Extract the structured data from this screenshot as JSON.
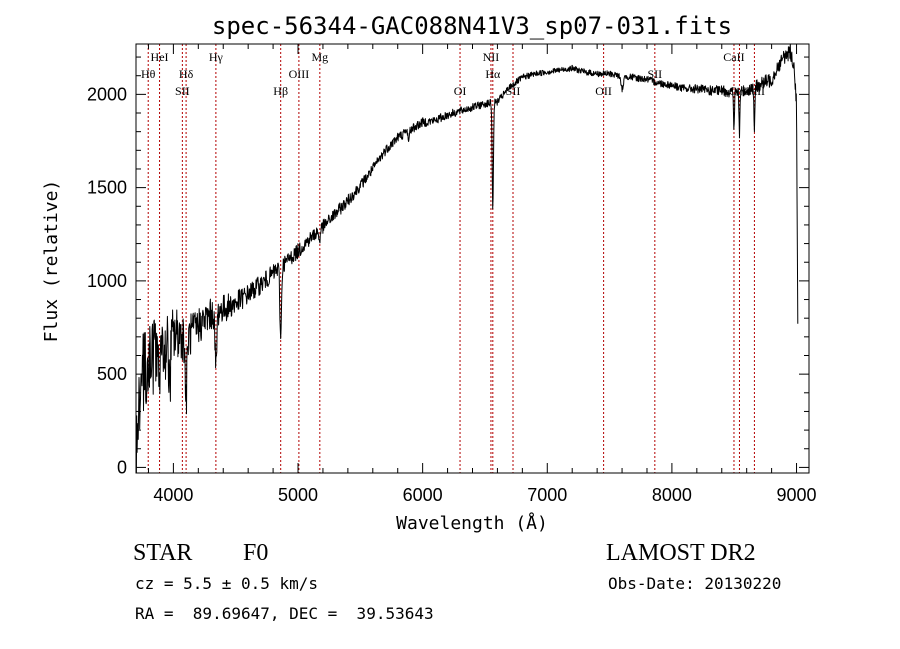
{
  "chart_data": {
    "type": "line",
    "title": "spec-56344-GAC088N41V3_sp07-031.fits",
    "xlabel": "Wavelength (Å)",
    "ylabel": "Flux (relative)",
    "xlim": [
      3700,
      9100
    ],
    "ylim": [
      -30,
      2270
    ],
    "x_ticks": [
      4000,
      5000,
      6000,
      7000,
      8000,
      9000
    ],
    "y_ticks": [
      0,
      500,
      1000,
      1500,
      2000
    ],
    "grid": false,
    "line_color": "#000000",
    "marker_color": "#b30000",
    "continuum": [
      [
        3700,
        60
      ],
      [
        3720,
        330
      ],
      [
        3740,
        450
      ],
      [
        3760,
        510
      ],
      [
        3780,
        520
      ],
      [
        3800,
        560
      ],
      [
        3820,
        590
      ],
      [
        3850,
        600
      ],
      [
        3880,
        600
      ],
      [
        3900,
        620
      ],
      [
        3950,
        650
      ],
      [
        4000,
        700
      ],
      [
        4050,
        720
      ],
      [
        4100,
        690
      ],
      [
        4150,
        720
      ],
      [
        4200,
        760
      ],
      [
        4300,
        820
      ],
      [
        4400,
        850
      ],
      [
        4500,
        880
      ],
      [
        4600,
        930
      ],
      [
        4700,
        980
      ],
      [
        4800,
        1040
      ],
      [
        4900,
        1100
      ],
      [
        5000,
        1160
      ],
      [
        5100,
        1230
      ],
      [
        5200,
        1290
      ],
      [
        5300,
        1360
      ],
      [
        5400,
        1430
      ],
      [
        5500,
        1510
      ],
      [
        5600,
        1600
      ],
      [
        5700,
        1700
      ],
      [
        5800,
        1770
      ],
      [
        5900,
        1810
      ],
      [
        6000,
        1850
      ],
      [
        6100,
        1860
      ],
      [
        6200,
        1890
      ],
      [
        6300,
        1910
      ],
      [
        6400,
        1930
      ],
      [
        6500,
        1950
      ],
      [
        6600,
        1960
      ],
      [
        6700,
        2040
      ],
      [
        6800,
        2090
      ],
      [
        6900,
        2110
      ],
      [
        7000,
        2120
      ],
      [
        7100,
        2130
      ],
      [
        7200,
        2140
      ],
      [
        7300,
        2120
      ],
      [
        7400,
        2110
      ],
      [
        7500,
        2110
      ],
      [
        7600,
        2100
      ],
      [
        7700,
        2090
      ],
      [
        7800,
        2080
      ],
      [
        7900,
        2060
      ],
      [
        8000,
        2050
      ],
      [
        8100,
        2030
      ],
      [
        8200,
        2030
      ],
      [
        8300,
        2020
      ],
      [
        8400,
        2020
      ],
      [
        8500,
        2010
      ],
      [
        8600,
        2020
      ],
      [
        8700,
        2050
      ],
      [
        8800,
        2080
      ],
      [
        8850,
        2150
      ],
      [
        8900,
        2200
      ],
      [
        8950,
        2230
      ],
      [
        8980,
        2150
      ],
      [
        9000,
        1950
      ],
      [
        9010,
        760
      ]
    ],
    "noise": [
      [
        3700,
        220
      ],
      [
        3900,
        200
      ],
      [
        4100,
        120
      ],
      [
        4300,
        85
      ],
      [
        4600,
        55
      ],
      [
        5000,
        40
      ],
      [
        5500,
        30
      ],
      [
        6000,
        25
      ],
      [
        6500,
        20
      ],
      [
        7000,
        15
      ],
      [
        7500,
        17
      ],
      [
        8000,
        20
      ],
      [
        8500,
        30
      ],
      [
        8800,
        40
      ],
      [
        9010,
        40
      ]
    ],
    "absorption": [
      {
        "x": 3889,
        "depth": 200,
        "width": 8
      },
      {
        "x": 3970,
        "depth": 250,
        "width": 9
      },
      {
        "x": 4102,
        "depth": 330,
        "width": 10
      },
      {
        "x": 4341,
        "depth": 300,
        "width": 10
      },
      {
        "x": 4861,
        "depth": 390,
        "width": 9
      },
      {
        "x": 5172,
        "depth": 60,
        "width": 8
      },
      {
        "x": 5890,
        "depth": 60,
        "width": 6
      },
      {
        "x": 6563,
        "depth": 570,
        "width": 7
      },
      {
        "x": 7600,
        "depth": 70,
        "width": 15
      },
      {
        "x": 8498,
        "depth": 200,
        "width": 5
      },
      {
        "x": 8542,
        "depth": 240,
        "width": 5
      },
      {
        "x": 8662,
        "depth": 260,
        "width": 5
      }
    ],
    "lines": [
      {
        "wl": 3798,
        "label": "Hθ",
        "row": 1
      },
      {
        "wl": 3889,
        "label": "HeI",
        "row": 0
      },
      {
        "wl": 4072,
        "label": "SII",
        "row": 2
      },
      {
        "wl": 4102,
        "label": "Hδ",
        "row": 1
      },
      {
        "wl": 4341,
        "label": "Hγ",
        "row": 0
      },
      {
        "wl": 4861,
        "label": "Hβ",
        "row": 2
      },
      {
        "wl": 5007,
        "label": "OIII",
        "row": 1
      },
      {
        "wl": 5175,
        "label": "Mg",
        "row": 0
      },
      {
        "wl": 6300,
        "label": "OI",
        "row": 2
      },
      {
        "wl": 6548,
        "label": "NII",
        "row": 0
      },
      {
        "wl": 6563,
        "label": "Hα",
        "row": 1
      },
      {
        "wl": 6725,
        "label": "SII",
        "row": 2
      },
      {
        "wl": 7452,
        "label": "OII",
        "row": 2
      },
      {
        "wl": 7863,
        "label": "SII",
        "row": 1
      },
      {
        "wl": 8498,
        "label": "CaII",
        "row": 0
      },
      {
        "wl": 8542,
        "label": "CaII",
        "row": 2
      },
      {
        "wl": 8662,
        "label": "CaII",
        "row": 2
      }
    ]
  },
  "info": {
    "object_class": "STAR",
    "subclass": "F0",
    "survey": "LAMOST DR2",
    "cz": "cz = 5.5 ± 0.5 km/s",
    "obs_date": "Obs-Date: 20130220",
    "coords": "RA =  89.69647, DEC =  39.53643"
  }
}
